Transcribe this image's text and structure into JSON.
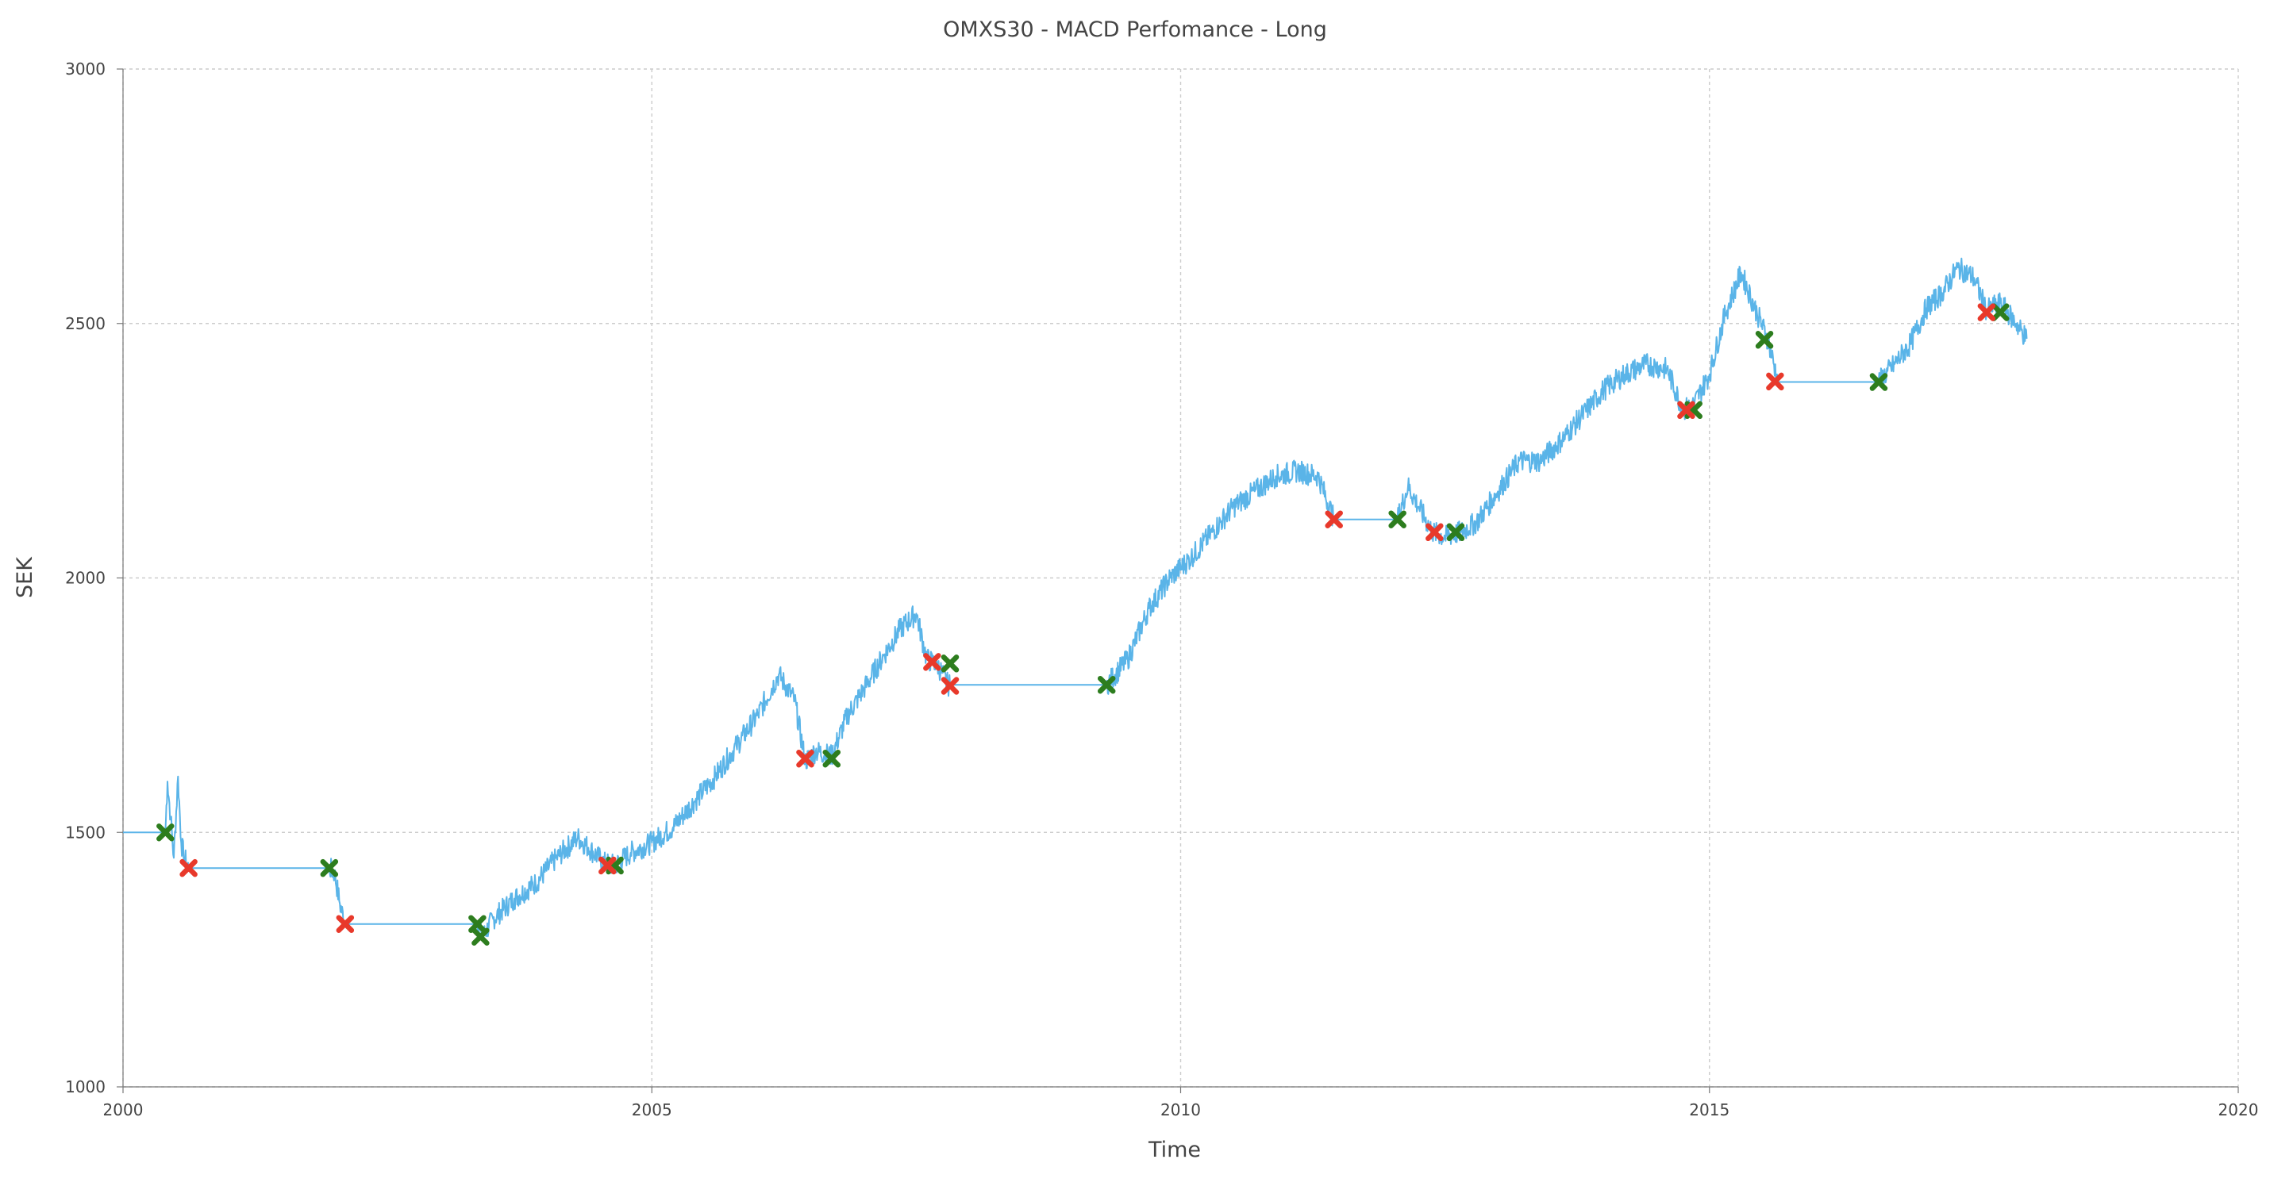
{
  "chart_data": {
    "type": "line",
    "title": "OMXS30 - MACD Perfomance - Long",
    "xlabel": "Time",
    "ylabel": "SEK",
    "xlim": [
      2000,
      2020
    ],
    "ylim": [
      1000,
      3000
    ],
    "x_ticks": [
      "2000",
      "2005",
      "2010",
      "2015",
      "2020"
    ],
    "y_ticks": [
      "1000",
      "1500",
      "2000",
      "2500",
      "3000"
    ],
    "grid": true,
    "series": [
      {
        "style": "line",
        "color": "#5ab4e8",
        "x": [
          2000.0,
          2000.4,
          2000.42,
          2000.45,
          2000.48,
          2000.52,
          2000.55,
          2000.58,
          2000.62,
          2001.95,
          2002.0,
          2002.05,
          2002.1,
          2003.35,
          2003.4,
          2003.5,
          2003.7,
          2003.9,
          2004.1,
          2004.3,
          2004.4,
          2004.55,
          2004.65,
          2004.8,
          2005.0,
          2005.2,
          2005.4,
          2005.6,
          2005.8,
          2006.0,
          2006.2,
          2006.35,
          2006.45,
          2006.55,
          2006.7,
          2006.85,
          2007.0,
          2007.2,
          2007.35,
          2007.5,
          2007.6,
          2007.7,
          2007.8,
          2007.82,
          2009.3,
          2009.5,
          2009.7,
          2009.9,
          2010.1,
          2010.3,
          2010.5,
          2010.7,
          2010.9,
          2011.1,
          2011.3,
          2011.45,
          2012.05,
          2012.15,
          2012.25,
          2012.38,
          2012.5,
          2012.65,
          2012.8,
          2013.0,
          2013.2,
          2013.4,
          2013.6,
          2013.8,
          2014.0,
          2014.2,
          2014.4,
          2014.6,
          2014.75,
          2014.85,
          2015.0,
          2015.15,
          2015.3,
          2015.45,
          2015.55,
          2015.65,
          2016.6,
          2016.75,
          2016.9,
          2017.05,
          2017.2,
          2017.35,
          2017.5,
          2017.62,
          2017.75,
          2017.9,
          2018.0
        ],
        "y": [
          1500,
          1500,
          1600,
          1530,
          1450,
          1610,
          1480,
          1450,
          1430,
          1430,
          1420,
          1360,
          1320,
          1320,
          1295,
          1330,
          1370,
          1400,
          1450,
          1490,
          1470,
          1440,
          1435,
          1460,
          1480,
          1510,
          1560,
          1610,
          1670,
          1730,
          1810,
          1760,
          1640,
          1660,
          1650,
          1730,
          1780,
          1850,
          1900,
          1930,
          1840,
          1830,
          1790,
          1790,
          1790,
          1840,
          1940,
          2000,
          2040,
          2090,
          2140,
          2170,
          2200,
          2210,
          2200,
          2115,
          2115,
          2180,
          2140,
          2090,
          2080,
          2090,
          2110,
          2170,
          2230,
          2230,
          2270,
          2320,
          2370,
          2400,
          2420,
          2410,
          2330,
          2340,
          2400,
          2520,
          2600,
          2520,
          2470,
          2385,
          2385,
          2420,
          2460,
          2530,
          2560,
          2610,
          2590,
          2525,
          2540,
          2500,
          2470
        ]
      },
      {
        "name": "",
        "style": "marker",
        "color": "#2d7d1e",
        "points": [
          [
            2000.4,
            1500
          ],
          [
            2001.95,
            1430
          ],
          [
            2003.35,
            1320
          ],
          [
            2003.38,
            1295
          ],
          [
            2004.65,
            1435
          ],
          [
            2006.7,
            1645
          ],
          [
            2007.82,
            1832
          ],
          [
            2009.3,
            1790
          ],
          [
            2012.05,
            2115
          ],
          [
            2012.6,
            2090
          ],
          [
            2014.85,
            2330
          ],
          [
            2015.52,
            2468
          ],
          [
            2016.6,
            2385
          ],
          [
            2017.75,
            2522
          ]
        ]
      },
      {
        "name": "",
        "style": "marker",
        "color": "#e8392b",
        "points": [
          [
            2000.62,
            1430
          ],
          [
            2002.1,
            1320
          ],
          [
            2004.58,
            1435
          ],
          [
            2006.45,
            1645
          ],
          [
            2007.65,
            1835
          ],
          [
            2007.82,
            1788
          ],
          [
            2011.45,
            2115
          ],
          [
            2012.4,
            2090
          ],
          [
            2014.78,
            2330
          ],
          [
            2015.62,
            2386
          ],
          [
            2017.62,
            2522
          ]
        ]
      }
    ]
  }
}
